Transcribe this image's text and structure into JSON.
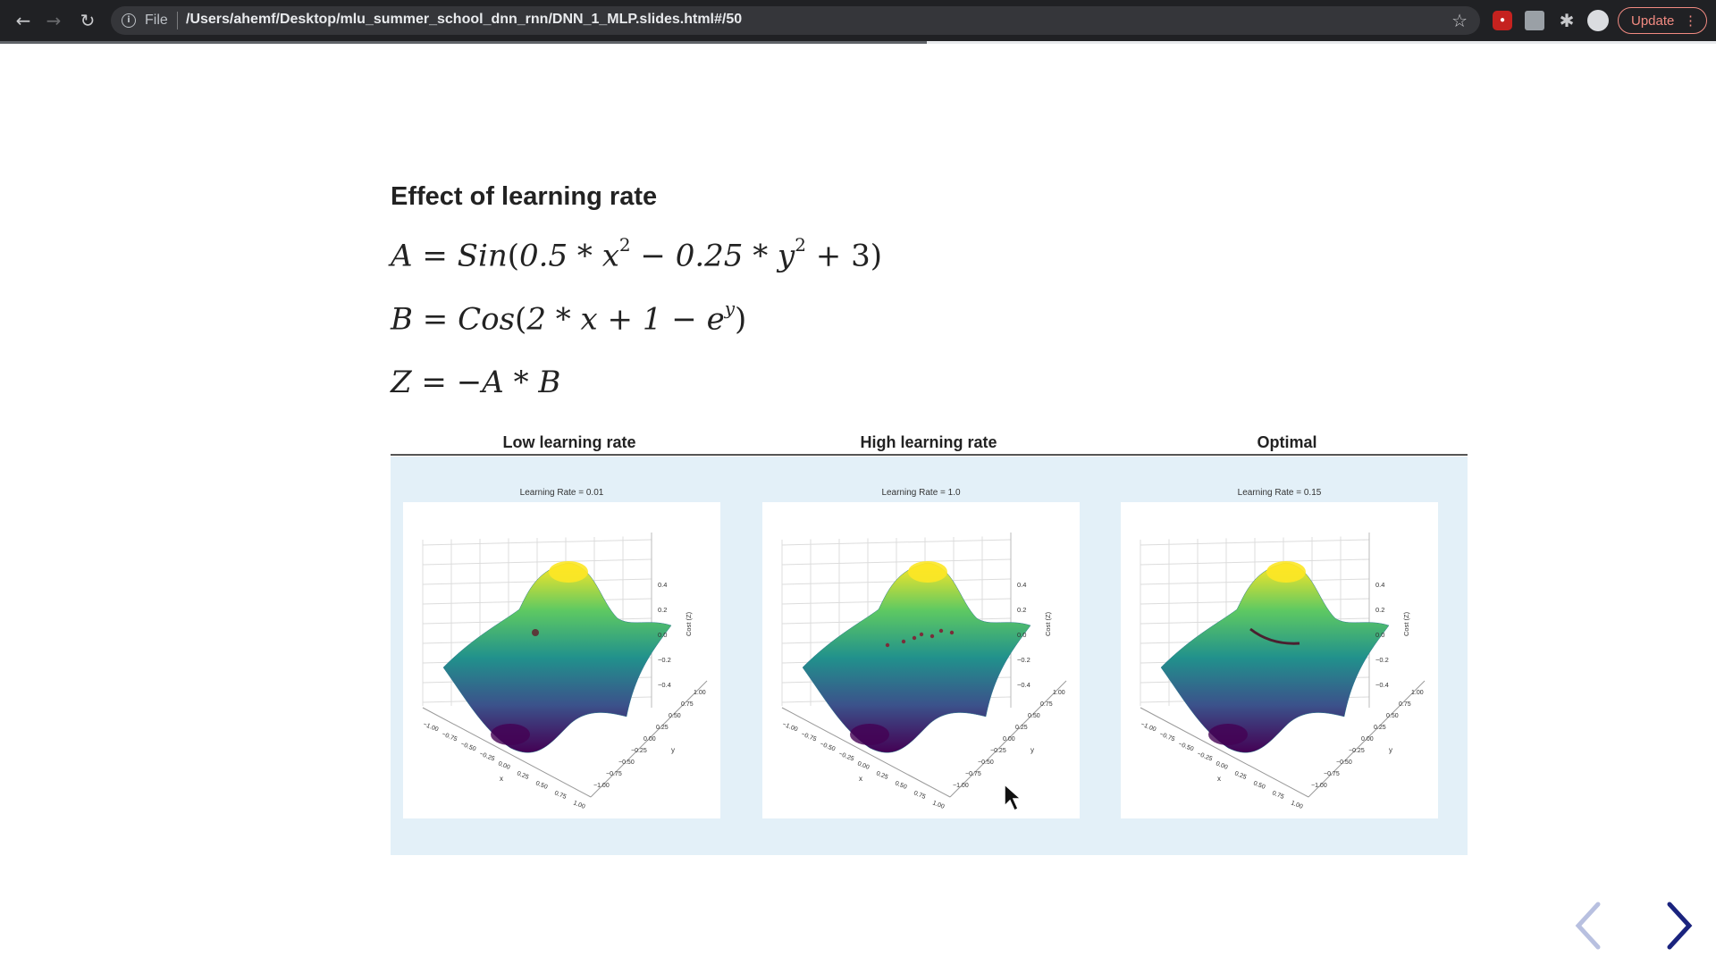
{
  "browser": {
    "back_icon": "arrow-left-icon",
    "forward_icon": "arrow-right-icon",
    "reload_icon": "reload-icon",
    "scheme_label": "File",
    "url": "/Users/ahemf/Desktop/mlu_summer_school_dnn_rnn/DNN_1_MLP.slides.html#/50",
    "update_label": "Update",
    "extensions": [
      "shield-extension-icon",
      "calendar-extension-icon",
      "puzzle-icon"
    ],
    "slide_progress": 0.54
  },
  "slide": {
    "title": "Effect of learning rate",
    "equations": {
      "a": {
        "lhs": "A",
        "rel": " = ",
        "fn": "Sin",
        "open": "(",
        "t1": "0.5 * x",
        "p1": "2",
        "t2": " − 0.25 * y",
        "p2": "2",
        "t3": " + 3)"
      },
      "b": {
        "lhs": "B",
        "rel": " = ",
        "fn": "Cos",
        "open": "(",
        "t1": "2 * x + 1 − e",
        "p1": "y",
        "t3": ")"
      },
      "z": {
        "text": "Z = −A * B"
      }
    },
    "columns": [
      {
        "heading": "Low learning rate",
        "caption": "Learning Rate = 0.01"
      },
      {
        "heading": "High learning rate",
        "caption": "Learning Rate = 1.0"
      },
      {
        "heading": "Optimal",
        "caption": "Learning Rate = 0.15"
      }
    ],
    "axis": {
      "z_ticks": [
        "0.4",
        "0.2",
        "0.0",
        "−0.2",
        "−0.4"
      ],
      "z_label": "Cost (Z)",
      "x_ticks": [
        "−1.00",
        "−0.75",
        "−0.50",
        "−0.25",
        "0.00",
        "0.25",
        "0.50",
        "0.75",
        "1.00"
      ],
      "x_label": "x",
      "y_ticks": [
        "1.00",
        "0.75",
        "0.50",
        "0.25",
        "0.00",
        "−0.25",
        "−0.50",
        "−0.75",
        "−1.00"
      ],
      "y_label": "y"
    },
    "nav": {
      "prev_icon": "chevron-left-icon",
      "next_icon": "chevron-right-icon"
    }
  }
}
